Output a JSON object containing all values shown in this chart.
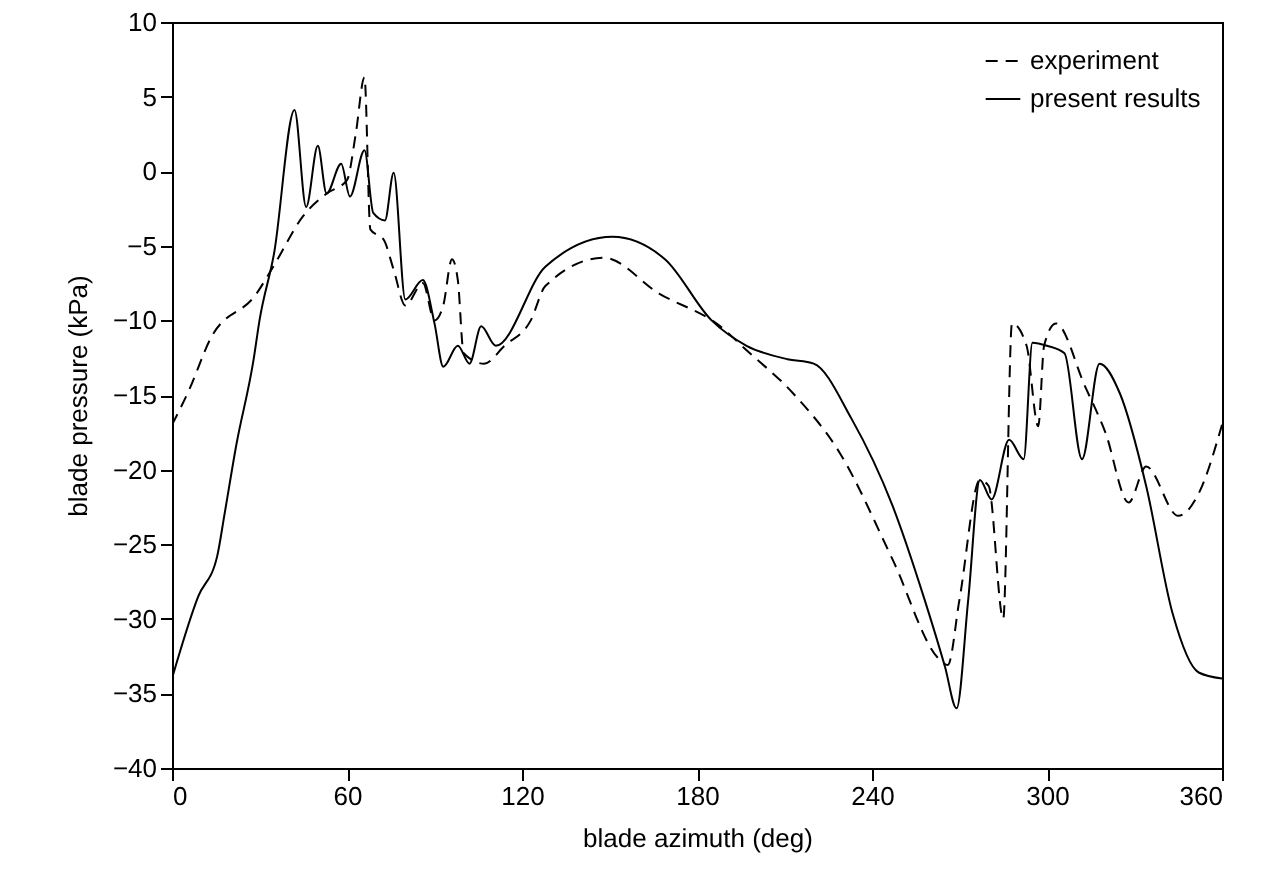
{
  "chart_data": {
    "type": "line",
    "xlabel": "blade azimuth (deg)",
    "ylabel": "blade pressure (kPa)",
    "xlim": [
      0,
      360
    ],
    "xticks": [
      0,
      60,
      120,
      180,
      240,
      300,
      360
    ],
    "ylim": [
      -40,
      10
    ],
    "yticks": [
      -40,
      -35,
      -30,
      -25,
      -20,
      -15,
      -10,
      -5,
      0,
      5,
      10
    ],
    "grid": false,
    "legend": "top right",
    "marker": "none",
    "series": [
      {
        "name": "experiment",
        "color": "#000000",
        "line_style": "dashed",
        "x": [
          0,
          6,
          13,
          29,
          35,
          45,
          53,
          60,
          63,
          66,
          68,
          72.6,
          76,
          80,
          86,
          90,
          93,
          96,
          98,
          100,
          107,
          114,
          123,
          128,
          148,
          167,
          188,
          197,
          213,
          229,
          247,
          263,
          266,
          270,
          277,
          280,
          285,
          288,
          293,
          297,
          299,
          303,
          313,
          320,
          328,
          334,
          345,
          352,
          360
        ],
        "values": [
          -17,
          -14.6,
          -11.3,
          -8.2,
          -6.3,
          -3,
          -1.5,
          -0.6,
          2.5,
          6.3,
          -3.9,
          -4.6,
          -6.6,
          -9,
          -7.5,
          -10,
          -9,
          -5.9,
          -7.3,
          -12.2,
          -12.9,
          -11.7,
          -10,
          -7.7,
          -5.8,
          -8.2,
          -10.4,
          -12,
          -14.9,
          -18.9,
          -26,
          -32.7,
          -33.1,
          -28.7,
          -20.7,
          -21.1,
          -30,
          -10.2,
          -11.7,
          -17.1,
          -11.7,
          -10.2,
          -14.4,
          -17.5,
          -22.2,
          -19.8,
          -23.1,
          -21.6,
          -17
        ]
      },
      {
        "name": "present results",
        "color": "#000000",
        "line_style": "solid",
        "x": [
          0,
          9,
          15.5,
          18,
          22,
          28,
          30,
          35,
          42,
          46,
          50,
          53,
          58,
          61,
          66,
          69,
          73,
          76,
          80,
          86,
          90,
          93,
          98,
          102,
          106,
          111,
          128,
          151,
          169,
          185,
          197,
          211,
          220,
          233,
          247,
          258,
          265,
          269,
          273,
          277,
          281,
          287,
          292,
          295,
          300,
          306,
          312,
          318,
          325,
          334,
          343,
          352,
          360
        ],
        "values": [
          -34,
          -28.5,
          -25.8,
          -23,
          -18.4,
          -12.6,
          -10,
          -5.5,
          4.1,
          -2.4,
          1.7,
          -1.5,
          0.5,
          -1.7,
          1.4,
          -2.8,
          -3.3,
          -0.1,
          -8.6,
          -7.3,
          -10.2,
          -13.1,
          -11.7,
          -12.9,
          -10.4,
          -11.7,
          -6.4,
          -4.4,
          -5.9,
          -10,
          -11.7,
          -12.6,
          -12.9,
          -16.6,
          -22.4,
          -28.7,
          -33.2,
          -36,
          -28.7,
          -20.7,
          -22,
          -18,
          -19.3,
          -11.5,
          -11.7,
          -12.2,
          -19.3,
          -12.9,
          -14.9,
          -21.1,
          -29.6,
          -33.6,
          -34
        ]
      }
    ]
  }
}
